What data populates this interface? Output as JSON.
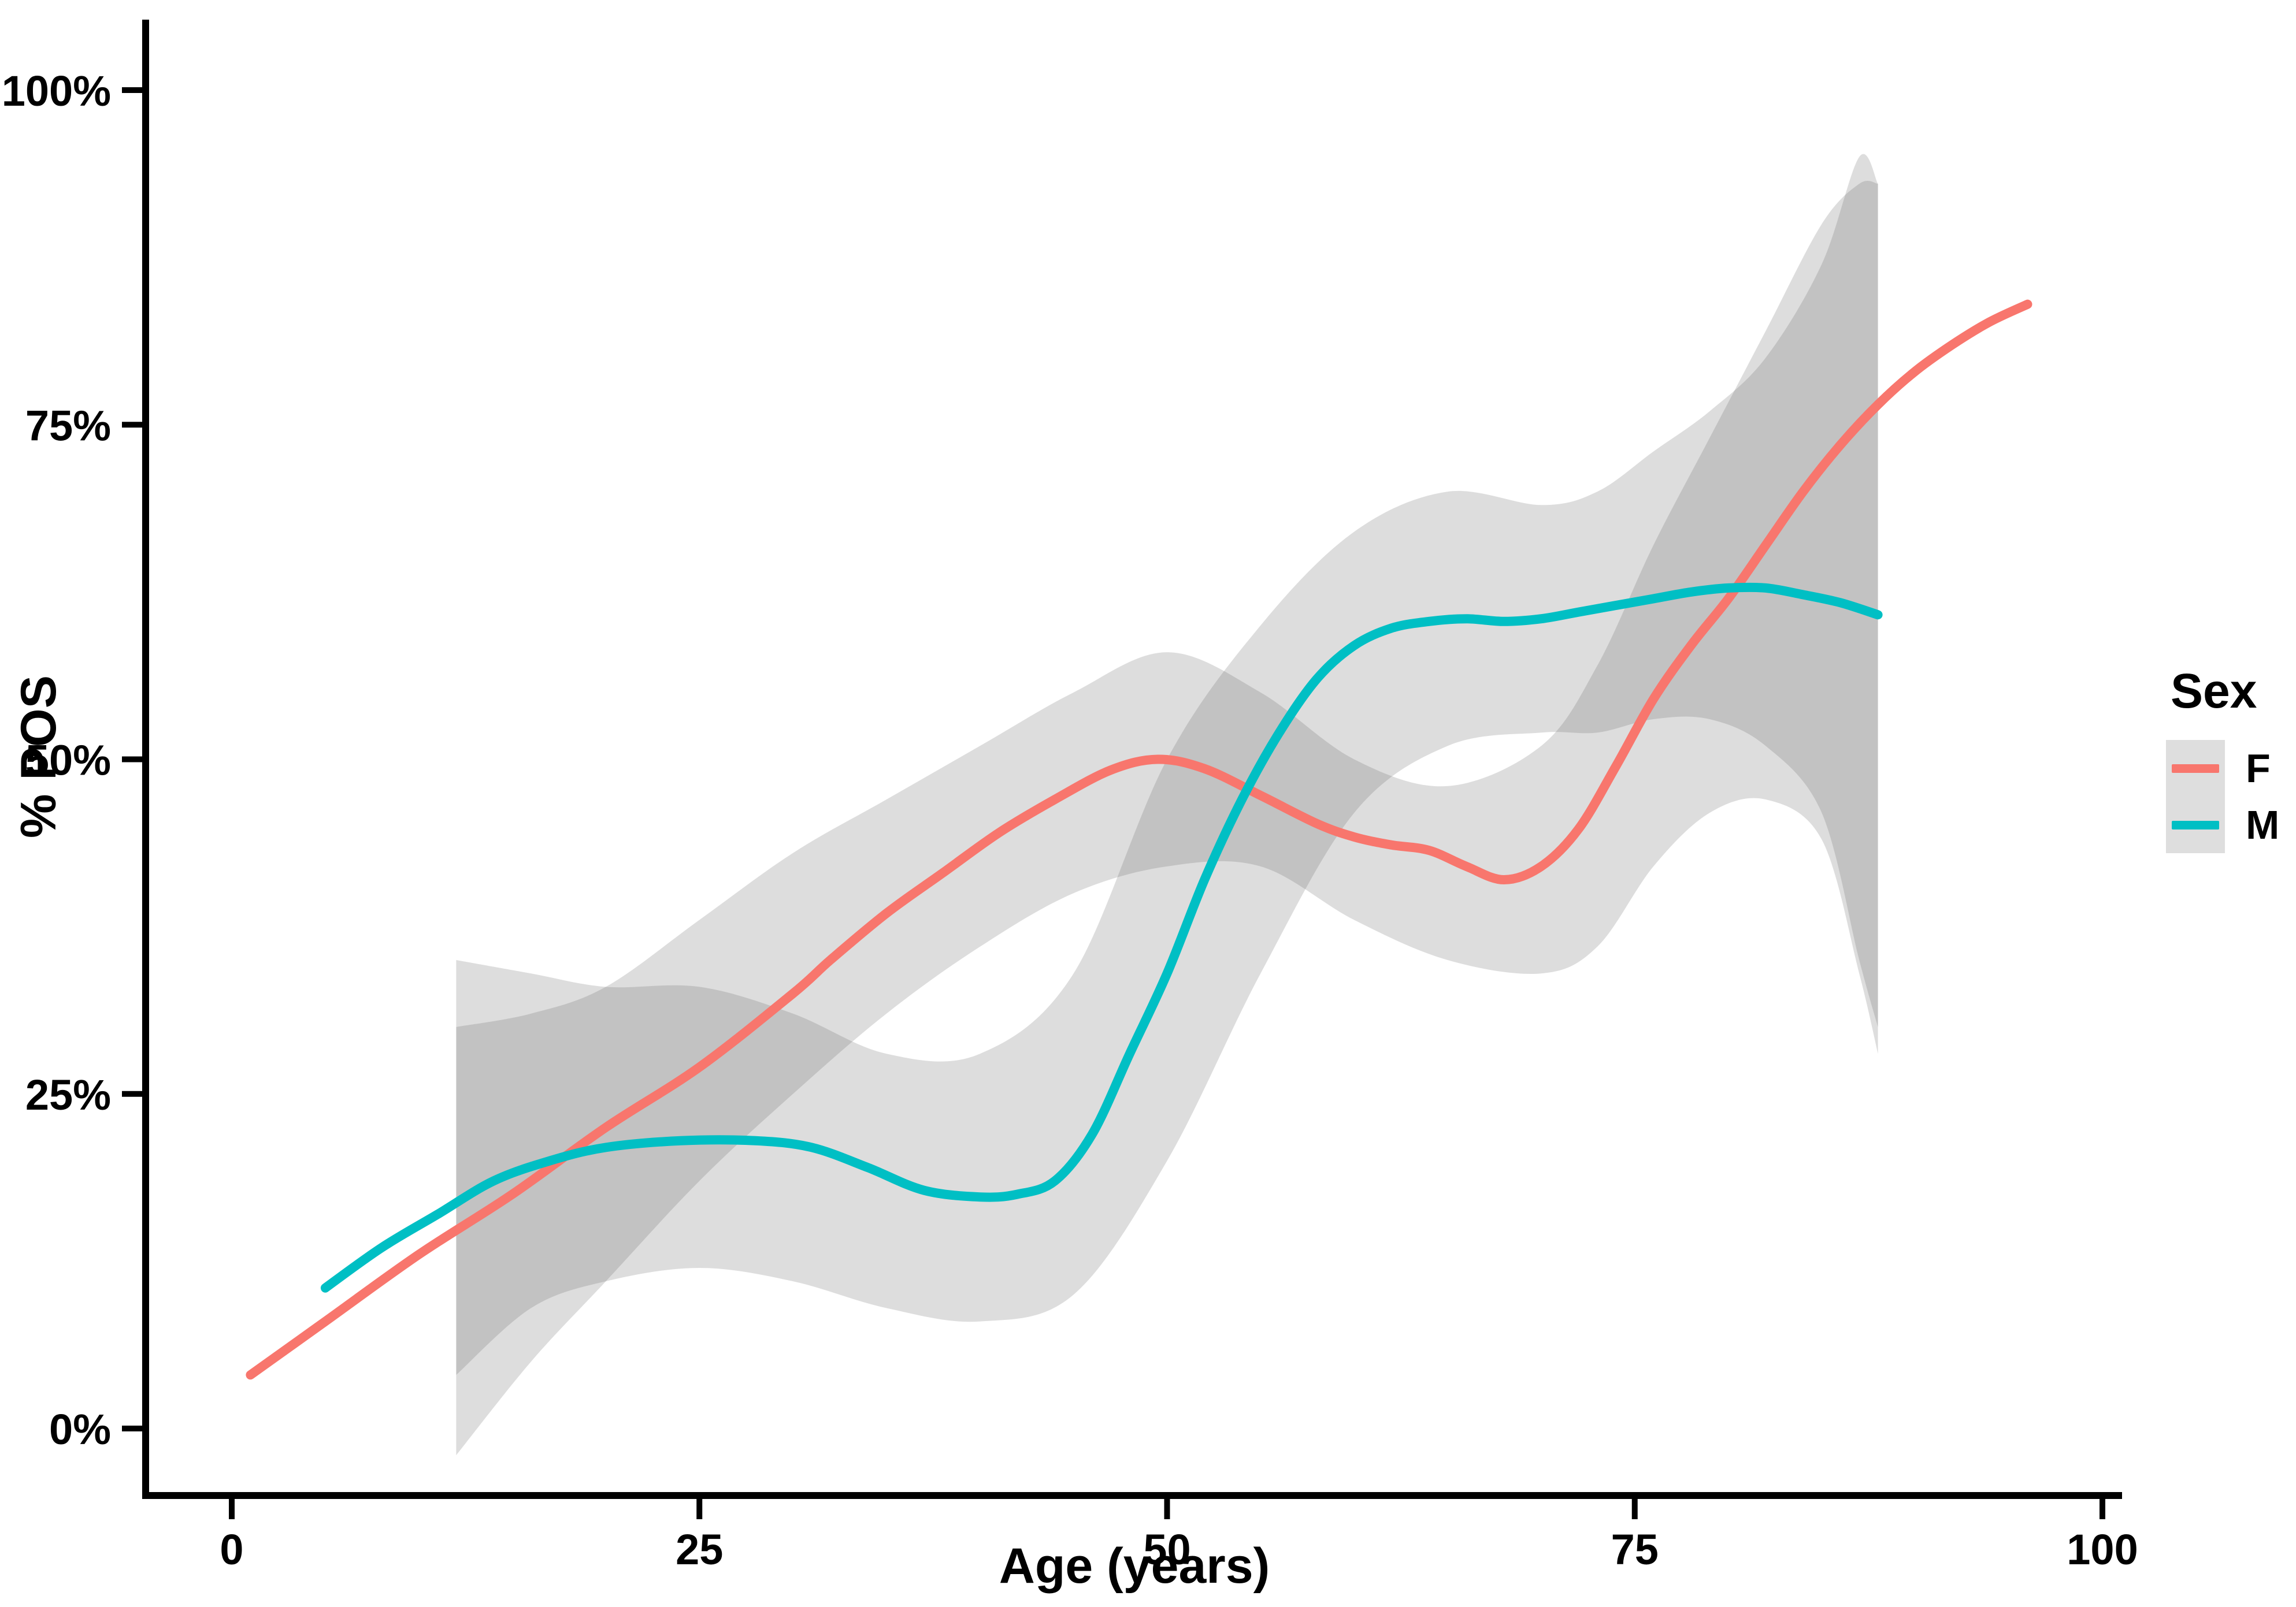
{
  "figure": {
    "title": "",
    "y_axis_title": "% POS",
    "x_axis_title": "Age (years)",
    "legend_title": "Sex"
  },
  "chart_data": {
    "type": "line",
    "title": "",
    "xlabel": "Age (years)",
    "ylabel": "% POS",
    "legend_title": "Sex",
    "legend_position": "right",
    "grid": false,
    "xlim": [
      -5,
      105
    ],
    "ylim": [
      -5,
      105
    ],
    "x_ticks": [
      0,
      25,
      50,
      75,
      100
    ],
    "x_tick_labels": [
      "0",
      "25",
      "50",
      "75",
      "100"
    ],
    "y_ticks": [
      0,
      25,
      50,
      75,
      100
    ],
    "y_tick_labels": [
      "0%",
      "25%",
      "50%",
      "75%",
      "100%"
    ],
    "band_color": "rgba(102,102,102,0.22)",
    "series": [
      {
        "name": "F",
        "color": "#F8766D",
        "x": [
          1,
          5,
          10,
          15,
          20,
          25,
          30,
          32,
          35,
          38,
          41,
          44,
          47,
          49.5,
          52,
          55,
          58,
          60,
          62,
          64,
          66,
          68,
          70,
          72,
          74,
          76,
          78,
          80,
          82,
          84,
          86,
          88,
          90,
          92,
          94,
          96
        ],
        "y": [
          4,
          8,
          13,
          17.5,
          22.5,
          27,
          32.5,
          35,
          38.5,
          41.5,
          44.5,
          47,
          49.2,
          50,
          49.3,
          47.3,
          45.2,
          44.2,
          43.6,
          43.2,
          42,
          41,
          42,
          44.8,
          49.5,
          54.5,
          58.5,
          62,
          66,
          70,
          73.5,
          76.5,
          79,
          81,
          82.7,
          84
        ],
        "ci": {
          "x": [
            12,
            16,
            20,
            25,
            30,
            35,
            40,
            45,
            50,
            55,
            60,
            65,
            70,
            73,
            76,
            79,
            82,
            85,
            87,
            88
          ],
          "upper": [
            30,
            31,
            33,
            38,
            43,
            47,
            51,
            55,
            58,
            55,
            50,
            48,
            51,
            57,
            66,
            74,
            82,
            90,
            93,
            93
          ],
          "lower": [
            -2,
            5,
            11,
            18.5,
            25,
            31,
            36,
            40,
            42,
            42,
            38,
            35,
            34,
            36,
            42,
            46,
            47,
            44,
            34,
            28
          ]
        }
      },
      {
        "name": "M",
        "color": "#00BFC4",
        "x": [
          5,
          8,
          11,
          14,
          17,
          20,
          24,
          28,
          31,
          34,
          37,
          40,
          42,
          44,
          46,
          48,
          50,
          52,
          54,
          56,
          58,
          60,
          62,
          64,
          66,
          68,
          70,
          72,
          74,
          76,
          78,
          80,
          82,
          84,
          86,
          88
        ],
        "y": [
          10.5,
          13.5,
          16,
          18.5,
          20,
          21,
          21.5,
          21.5,
          21,
          19.5,
          17.8,
          17.3,
          17.5,
          18.5,
          22,
          28,
          34,
          41,
          47,
          52,
          56,
          58.5,
          59.8,
          60.3,
          60.5,
          60.3,
          60.5,
          61,
          61.5,
          62,
          62.5,
          62.8,
          62.8,
          62.3,
          61.7,
          60.8
        ],
        "ci": {
          "x": [
            12,
            16,
            20,
            25,
            30,
            35,
            40,
            45,
            50,
            55,
            60,
            65,
            70,
            73,
            76,
            79,
            82,
            85,
            87,
            88
          ],
          "upper": [
            35,
            34,
            33,
            33,
            31,
            28,
            28,
            34,
            50,
            60,
            67,
            70,
            69,
            70,
            73,
            76,
            80,
            87,
            95,
            93
          ],
          "lower": [
            4,
            9,
            11,
            12,
            11,
            9,
            8,
            10,
            20,
            34,
            46,
            51,
            52,
            52,
            53,
            53,
            51,
            46,
            35,
            30
          ]
        }
      }
    ]
  }
}
